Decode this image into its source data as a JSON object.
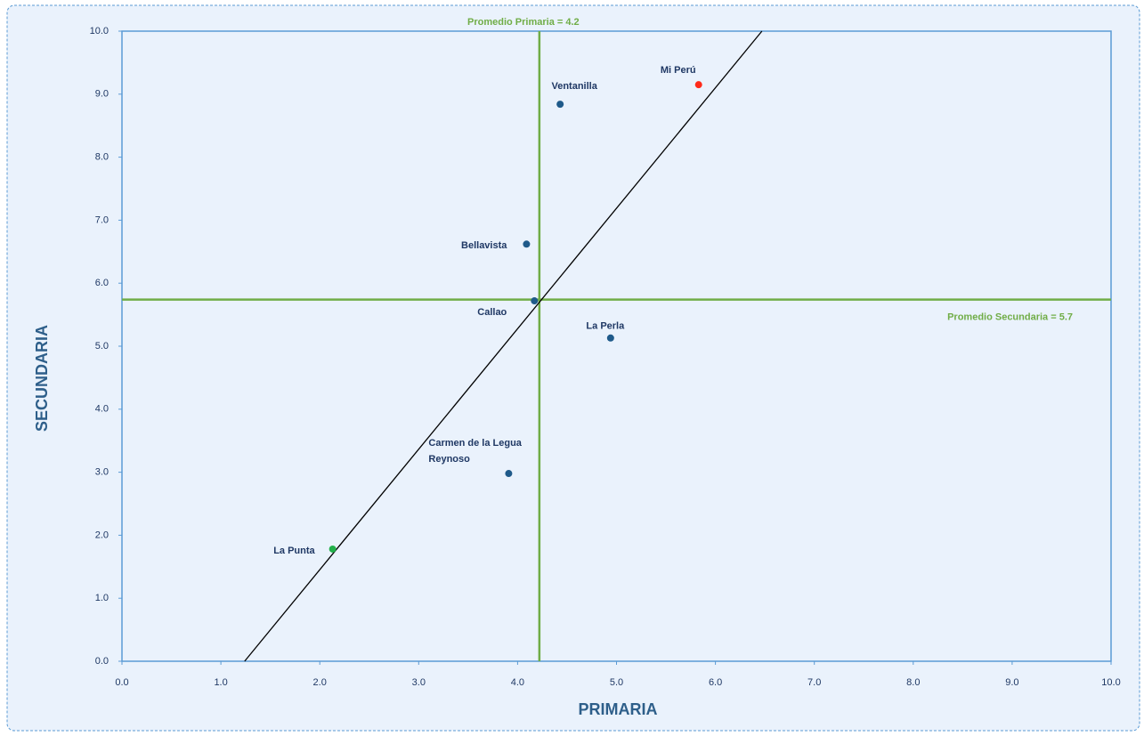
{
  "chart_data": {
    "type": "scatter",
    "x_label": "PRIMARIA",
    "y_label": "SECUNDARIA",
    "xlim": [
      0,
      10
    ],
    "ylim": [
      0,
      10
    ],
    "xticks": [
      {
        "value": 0,
        "label": "0.0"
      },
      {
        "value": 1,
        "label": "1.0"
      },
      {
        "value": 2,
        "label": "2.0"
      },
      {
        "value": 3,
        "label": "3.0"
      },
      {
        "value": 4,
        "label": "4.0"
      },
      {
        "value": 5,
        "label": "5.0"
      },
      {
        "value": 6,
        "label": "6.0"
      },
      {
        "value": 7,
        "label": "7.0"
      },
      {
        "value": 8,
        "label": "8.0"
      },
      {
        "value": 9,
        "label": "9.0"
      },
      {
        "value": 10,
        "label": "10.0"
      }
    ],
    "yticks": [
      {
        "value": 0,
        "label": "0.0"
      },
      {
        "value": 1,
        "label": "1.0"
      },
      {
        "value": 2,
        "label": "2.0"
      },
      {
        "value": 3,
        "label": "3.0"
      },
      {
        "value": 4,
        "label": "4.0"
      },
      {
        "value": 5,
        "label": "5.0"
      },
      {
        "value": 6,
        "label": "6.0"
      },
      {
        "value": 7,
        "label": "7.0"
      },
      {
        "value": 8,
        "label": "8.0"
      },
      {
        "value": 9,
        "label": "9.0"
      },
      {
        "value": 10,
        "label": "10.0"
      }
    ],
    "series": [
      {
        "labels": [
          "Ventanilla",
          "Mi Perú",
          "Bellavista",
          "Callao",
          "La Perla",
          [
            "Carmen de la  Legua",
            "Reynoso"
          ],
          "La Punta"
        ],
        "x": [
          4.43,
          5.83,
          4.09,
          4.17,
          4.94,
          3.91,
          2.13
        ],
        "values": [
          8.84,
          9.15,
          6.62,
          5.72,
          5.13,
          2.98,
          1.78
        ],
        "colors": [
          "#1f5a8a",
          "#ff2a1a",
          "#1f5a8a",
          "#1f5a8a",
          "#1f5a8a",
          "#1f5a8a",
          "#22b04a"
        ]
      }
    ],
    "reference_lines": [
      {
        "axis": "x",
        "value": 4.22,
        "label": "Promedio Primaria = 4.2",
        "color": "#70ad47"
      },
      {
        "axis": "y",
        "value": 5.74,
        "label": "Promedio Secundaria = 5.7",
        "color": "#70ad47"
      }
    ],
    "trendline": {
      "x": [
        1.24,
        6.47
      ],
      "y": [
        0,
        10
      ],
      "color": "#000000"
    }
  }
}
